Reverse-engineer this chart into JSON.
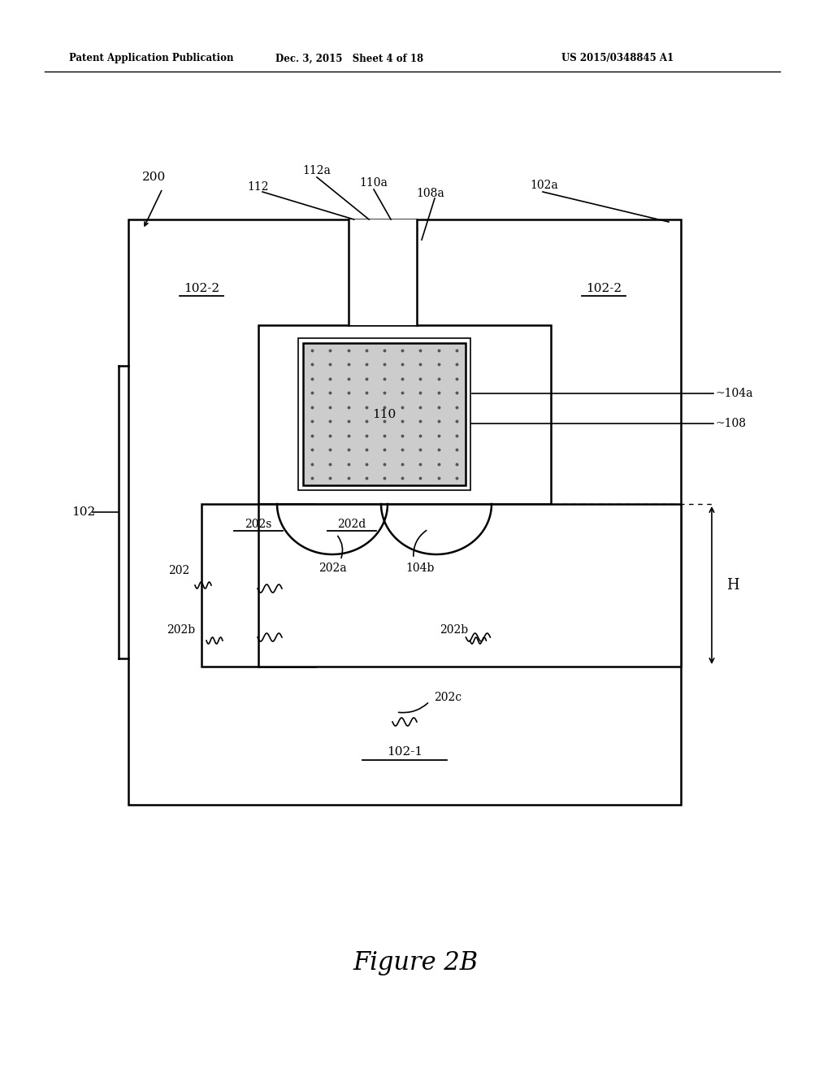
{
  "bg_color": "#ffffff",
  "line_color": "#000000",
  "header_left": "Patent Application Publication",
  "header_mid": "Dec. 3, 2015   Sheet 4 of 18",
  "header_right": "US 2015/0348845 A1",
  "figure_label": "Figure 2B",
  "lw": 1.8,
  "lw_thin": 1.2,
  "dot_color": "#888888",
  "gate_fill": "#cccccc"
}
